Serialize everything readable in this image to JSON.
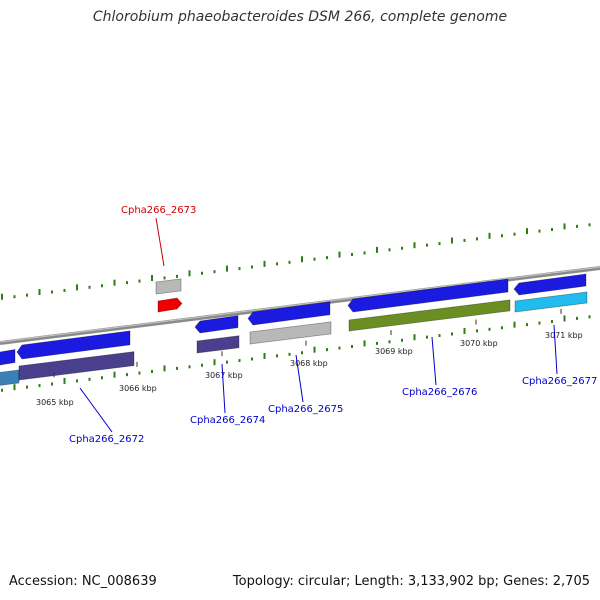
{
  "title": "Chlorobium phaeobacteroides DSM 266, complete genome",
  "footer": {
    "accession": "Accession: NC_008639",
    "summary": "Topology: circular; Length: 3,133,902 bp; Genes: 2,705"
  },
  "colors": {
    "backbone": "#8a8a8a",
    "gc_ticks": "#2e7d14",
    "gene_blue": "#1a1ae0",
    "gene_purple": "#4a3f8c",
    "gene_gray": "#b8b8b8",
    "gene_green": "#6b8e23",
    "gene_cyan": "#22bbee",
    "gene_steel": "#3a7fb8",
    "gene_red": "#ee0000",
    "label_blue": "#0000cc",
    "label_red": "#cc0000"
  },
  "scale_ticks": [
    {
      "label": "3065 kbp"
    },
    {
      "label": "3066 kbp"
    },
    {
      "label": "3067 kbp"
    },
    {
      "label": "3068 kbp"
    },
    {
      "label": "3069 kbp"
    },
    {
      "label": "3070 kbp"
    },
    {
      "label": "3071 kbp"
    }
  ],
  "gene_labels": [
    {
      "label": "Cpha266_2672",
      "color": "#0000cc"
    },
    {
      "label": "Cpha266_2673",
      "color": "#cc0000"
    },
    {
      "label": "Cpha266_2674",
      "color": "#0000cc"
    },
    {
      "label": "Cpha266_2675",
      "color": "#0000cc"
    },
    {
      "label": "Cpha266_2676",
      "color": "#0000cc"
    },
    {
      "label": "Cpha266_2677",
      "color": "#0000cc"
    }
  ]
}
